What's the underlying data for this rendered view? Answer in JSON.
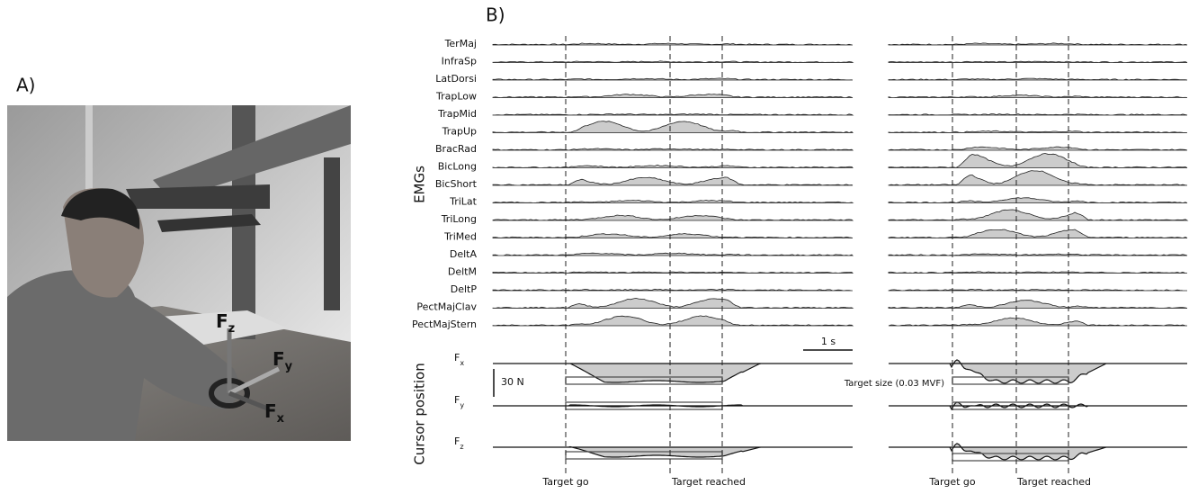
{
  "panel_a": {
    "label": "A)",
    "force_labels": [
      {
        "main": "F",
        "sub": "z"
      },
      {
        "main": "F",
        "sub": "y"
      },
      {
        "main": "F",
        "sub": "x"
      }
    ]
  },
  "panel_b": {
    "label": "B)",
    "emg_axis_label": "EMGs",
    "muscles": [
      "TerMaj",
      "InfraSp",
      "LatDorsi",
      "TrapLow",
      "TrapMid",
      "TrapUp",
      "BracRad",
      "BicLong",
      "BicShort",
      "TriLat",
      "TriLong",
      "TriMed",
      "DeltA",
      "DeltM",
      "DeltP",
      "PectMajClav",
      "PectMajStern"
    ],
    "cursor_axis_label": "Cursor position",
    "forces": [
      {
        "main": "F",
        "sub": "x"
      },
      {
        "main": "F",
        "sub": "y"
      },
      {
        "main": "F",
        "sub": "z"
      }
    ],
    "time_scale": "1 s",
    "force_scale": "30 N",
    "target_size": "Target size (0.03 MVF)",
    "events": [
      "Target go",
      "Target reached"
    ]
  }
}
